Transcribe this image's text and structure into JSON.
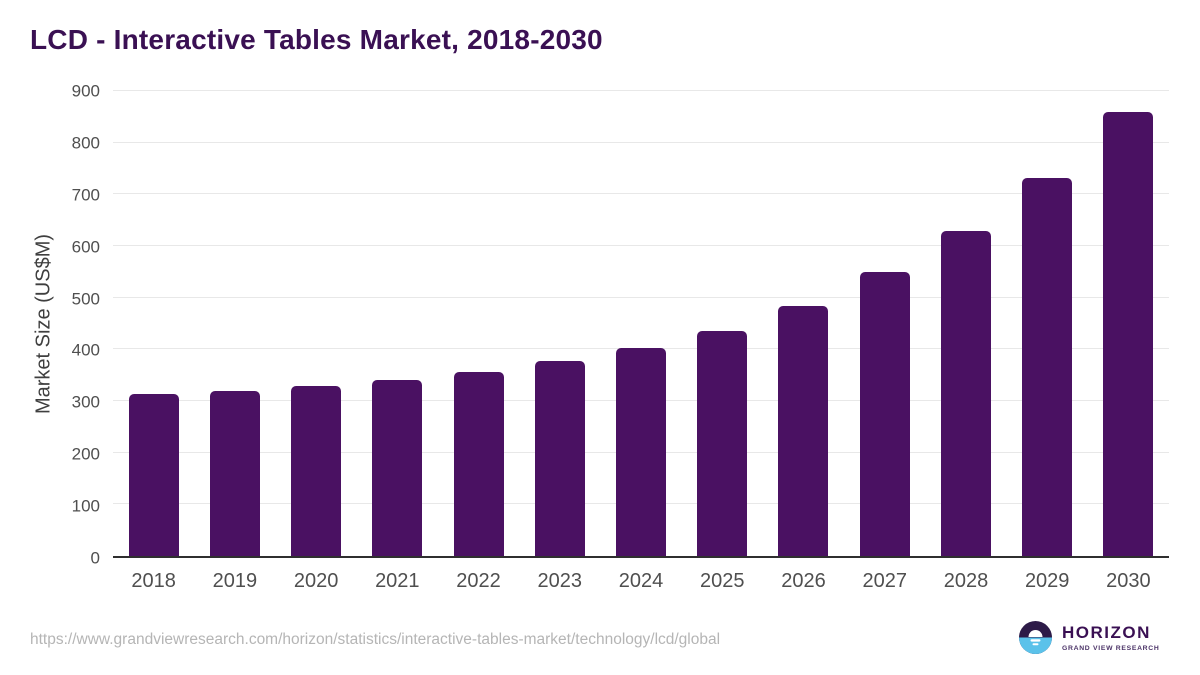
{
  "chart_data": {
    "type": "bar",
    "title": "LCD - Interactive Tables Market, 2018-2030",
    "categories": [
      "2018",
      "2019",
      "2020",
      "2021",
      "2022",
      "2023",
      "2024",
      "2025",
      "2026",
      "2027",
      "2028",
      "2029",
      "2030"
    ],
    "values": [
      313,
      319,
      329,
      341,
      356,
      377,
      402,
      436,
      484,
      550,
      630,
      731,
      860
    ],
    "xlabel": "",
    "ylabel": "Market Size (US$M)",
    "ylim": [
      0,
      900
    ],
    "y_ticks": [
      0,
      100,
      200,
      300,
      400,
      500,
      600,
      700,
      800,
      900
    ],
    "grid": "horizontal",
    "legend": "none",
    "bar_color": "#4a1162"
  },
  "footer": {
    "source_url": "https://www.grandviewresearch.com/horizon/statistics/interactive-tables-market/technology/lcd/global",
    "logo": {
      "name": "HORIZON",
      "tagline": "GRAND VIEW RESEARCH"
    }
  },
  "colors": {
    "title": "#3a1053",
    "bar": "#4a1162",
    "grid": "#e8e8e8",
    "axis": "#2f2f2f",
    "tick_label": "#4f4f4f",
    "y_axis_label": "#3f3f3f",
    "url": "#b5b5b5",
    "logo_dark_half": "#2d1b48",
    "logo_blue_half": "#5bc2ea",
    "logo_text": "#3a1053",
    "logo_tagline": "#4b3367"
  }
}
